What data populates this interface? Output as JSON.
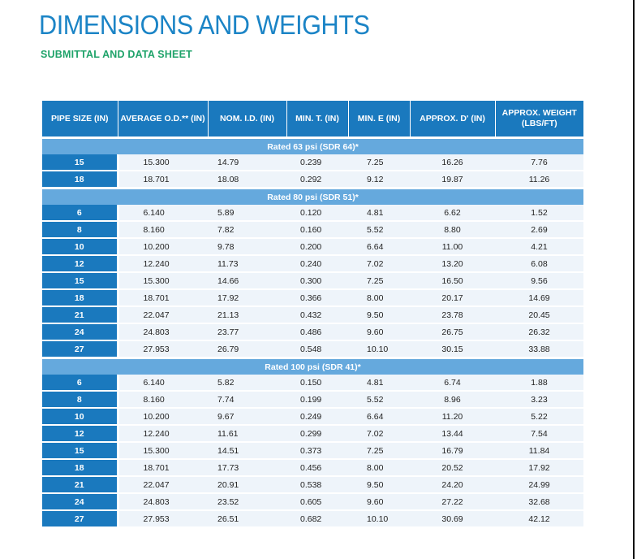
{
  "header": {
    "title": "DIMENSIONS AND WEIGHTS",
    "subtitle": "SUBMITTAL AND DATA SHEET"
  },
  "colors": {
    "title": "#1b84c6",
    "subtitle": "#1fa36a",
    "header_bg": "#1a79be",
    "section_bg": "#65a9dd",
    "cell_bg": "#eef4fa"
  },
  "table": {
    "columns": [
      "PIPE SIZE (IN)",
      "AVERAGE O.D.** (IN)",
      "NOM. I.D. (IN)",
      "MIN. T. (IN)",
      "MIN. E (IN)",
      "APPROX. D' (IN)",
      "APPROX. WEIGHT (LBS/FT)"
    ],
    "sections": [
      {
        "label": "Rated 63 psi (SDR 64)*",
        "rows": [
          [
            "15",
            "15.300",
            "14.79",
            "0.239",
            "7.25",
            "16.26",
            "7.76"
          ],
          [
            "18",
            "18.701",
            "18.08",
            "0.292",
            "9.12",
            "19.87",
            "11.26"
          ]
        ]
      },
      {
        "label": "Rated 80 psi (SDR 51)*",
        "rows": [
          [
            "6",
            "6.140",
            "5.89",
            "0.120",
            "4.81",
            "6.62",
            "1.52"
          ],
          [
            "8",
            "8.160",
            "7.82",
            "0.160",
            "5.52",
            "8.80",
            "2.69"
          ],
          [
            "10",
            "10.200",
            "9.78",
            "0.200",
            "6.64",
            "11.00",
            "4.21"
          ],
          [
            "12",
            "12.240",
            "11.73",
            "0.240",
            "7.02",
            "13.20",
            "6.08"
          ],
          [
            "15",
            "15.300",
            "14.66",
            "0.300",
            "7.25",
            "16.50",
            "9.56"
          ],
          [
            "18",
            "18.701",
            "17.92",
            "0.366",
            "8.00",
            "20.17",
            "14.69"
          ],
          [
            "21",
            "22.047",
            "21.13",
            "0.432",
            "9.50",
            "23.78",
            "20.45"
          ],
          [
            "24",
            "24.803",
            "23.77",
            "0.486",
            "9.60",
            "26.75",
            "26.32"
          ],
          [
            "27",
            "27.953",
            "26.79",
            "0.548",
            "10.10",
            "30.15",
            "33.88"
          ]
        ]
      },
      {
        "label": "Rated 100 psi (SDR 41)*",
        "rows": [
          [
            "6",
            "6.140",
            "5.82",
            "0.150",
            "4.81",
            "6.74",
            "1.88"
          ],
          [
            "8",
            "8.160",
            "7.74",
            "0.199",
            "5.52",
            "8.96",
            "3.23"
          ],
          [
            "10",
            "10.200",
            "9.67",
            "0.249",
            "6.64",
            "11.20",
            "5.22"
          ],
          [
            "12",
            "12.240",
            "11.61",
            "0.299",
            "7.02",
            "13.44",
            "7.54"
          ],
          [
            "15",
            "15.300",
            "14.51",
            "0.373",
            "7.25",
            "16.79",
            "11.84"
          ],
          [
            "18",
            "18.701",
            "17.73",
            "0.456",
            "8.00",
            "20.52",
            "17.92"
          ],
          [
            "21",
            "22.047",
            "20.91",
            "0.538",
            "9.50",
            "24.20",
            "24.99"
          ],
          [
            "24",
            "24.803",
            "23.52",
            "0.605",
            "9.60",
            "27.22",
            "32.68"
          ],
          [
            "27",
            "27.953",
            "26.51",
            "0.682",
            "10.10",
            "30.69",
            "42.12"
          ]
        ]
      }
    ]
  }
}
